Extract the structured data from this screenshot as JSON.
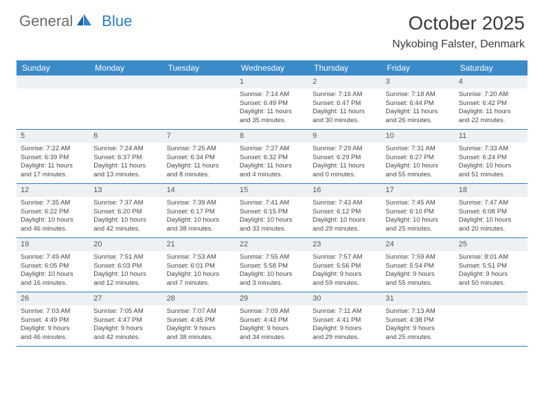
{
  "logo": {
    "text1": "General",
    "text2": "Blue"
  },
  "title": "October 2025",
  "location": "Nykobing Falster, Denmark",
  "colors": {
    "header_bg": "#3b8bc9",
    "accent": "#2b7bbf",
    "daynum_bg": "#eef1f3",
    "text": "#3a3a3a"
  },
  "day_names": [
    "Sunday",
    "Monday",
    "Tuesday",
    "Wednesday",
    "Thursday",
    "Friday",
    "Saturday"
  ],
  "weeks": [
    [
      {
        "n": "",
        "lines": [
          "",
          "",
          "",
          ""
        ]
      },
      {
        "n": "",
        "lines": [
          "",
          "",
          "",
          ""
        ]
      },
      {
        "n": "",
        "lines": [
          "",
          "",
          "",
          ""
        ]
      },
      {
        "n": "1",
        "lines": [
          "Sunrise: 7:14 AM",
          "Sunset: 6:49 PM",
          "Daylight: 11 hours",
          "and 35 minutes."
        ]
      },
      {
        "n": "2",
        "lines": [
          "Sunrise: 7:16 AM",
          "Sunset: 6:47 PM",
          "Daylight: 11 hours",
          "and 30 minutes."
        ]
      },
      {
        "n": "3",
        "lines": [
          "Sunrise: 7:18 AM",
          "Sunset: 6:44 PM",
          "Daylight: 11 hours",
          "and 26 minutes."
        ]
      },
      {
        "n": "4",
        "lines": [
          "Sunrise: 7:20 AM",
          "Sunset: 6:42 PM",
          "Daylight: 11 hours",
          "and 22 minutes."
        ]
      }
    ],
    [
      {
        "n": "5",
        "lines": [
          "Sunrise: 7:22 AM",
          "Sunset: 6:39 PM",
          "Daylight: 11 hours",
          "and 17 minutes."
        ]
      },
      {
        "n": "6",
        "lines": [
          "Sunrise: 7:24 AM",
          "Sunset: 6:37 PM",
          "Daylight: 11 hours",
          "and 13 minutes."
        ]
      },
      {
        "n": "7",
        "lines": [
          "Sunrise: 7:25 AM",
          "Sunset: 6:34 PM",
          "Daylight: 11 hours",
          "and 8 minutes."
        ]
      },
      {
        "n": "8",
        "lines": [
          "Sunrise: 7:27 AM",
          "Sunset: 6:32 PM",
          "Daylight: 11 hours",
          "and 4 minutes."
        ]
      },
      {
        "n": "9",
        "lines": [
          "Sunrise: 7:29 AM",
          "Sunset: 6:29 PM",
          "Daylight: 11 hours",
          "and 0 minutes."
        ]
      },
      {
        "n": "10",
        "lines": [
          "Sunrise: 7:31 AM",
          "Sunset: 6:27 PM",
          "Daylight: 10 hours",
          "and 55 minutes."
        ]
      },
      {
        "n": "11",
        "lines": [
          "Sunrise: 7:33 AM",
          "Sunset: 6:24 PM",
          "Daylight: 10 hours",
          "and 51 minutes."
        ]
      }
    ],
    [
      {
        "n": "12",
        "lines": [
          "Sunrise: 7:35 AM",
          "Sunset: 6:22 PM",
          "Daylight: 10 hours",
          "and 46 minutes."
        ]
      },
      {
        "n": "13",
        "lines": [
          "Sunrise: 7:37 AM",
          "Sunset: 6:20 PM",
          "Daylight: 10 hours",
          "and 42 minutes."
        ]
      },
      {
        "n": "14",
        "lines": [
          "Sunrise: 7:39 AM",
          "Sunset: 6:17 PM",
          "Daylight: 10 hours",
          "and 38 minutes."
        ]
      },
      {
        "n": "15",
        "lines": [
          "Sunrise: 7:41 AM",
          "Sunset: 6:15 PM",
          "Daylight: 10 hours",
          "and 33 minutes."
        ]
      },
      {
        "n": "16",
        "lines": [
          "Sunrise: 7:43 AM",
          "Sunset: 6:12 PM",
          "Daylight: 10 hours",
          "and 29 minutes."
        ]
      },
      {
        "n": "17",
        "lines": [
          "Sunrise: 7:45 AM",
          "Sunset: 6:10 PM",
          "Daylight: 10 hours",
          "and 25 minutes."
        ]
      },
      {
        "n": "18",
        "lines": [
          "Sunrise: 7:47 AM",
          "Sunset: 6:08 PM",
          "Daylight: 10 hours",
          "and 20 minutes."
        ]
      }
    ],
    [
      {
        "n": "19",
        "lines": [
          "Sunrise: 7:49 AM",
          "Sunset: 6:05 PM",
          "Daylight: 10 hours",
          "and 16 minutes."
        ]
      },
      {
        "n": "20",
        "lines": [
          "Sunrise: 7:51 AM",
          "Sunset: 6:03 PM",
          "Daylight: 10 hours",
          "and 12 minutes."
        ]
      },
      {
        "n": "21",
        "lines": [
          "Sunrise: 7:53 AM",
          "Sunset: 6:01 PM",
          "Daylight: 10 hours",
          "and 7 minutes."
        ]
      },
      {
        "n": "22",
        "lines": [
          "Sunrise: 7:55 AM",
          "Sunset: 5:58 PM",
          "Daylight: 10 hours",
          "and 3 minutes."
        ]
      },
      {
        "n": "23",
        "lines": [
          "Sunrise: 7:57 AM",
          "Sunset: 5:56 PM",
          "Daylight: 9 hours",
          "and 59 minutes."
        ]
      },
      {
        "n": "24",
        "lines": [
          "Sunrise: 7:59 AM",
          "Sunset: 5:54 PM",
          "Daylight: 9 hours",
          "and 55 minutes."
        ]
      },
      {
        "n": "25",
        "lines": [
          "Sunrise: 8:01 AM",
          "Sunset: 5:51 PM",
          "Daylight: 9 hours",
          "and 50 minutes."
        ]
      }
    ],
    [
      {
        "n": "26",
        "lines": [
          "Sunrise: 7:03 AM",
          "Sunset: 4:49 PM",
          "Daylight: 9 hours",
          "and 46 minutes."
        ]
      },
      {
        "n": "27",
        "lines": [
          "Sunrise: 7:05 AM",
          "Sunset: 4:47 PM",
          "Daylight: 9 hours",
          "and 42 minutes."
        ]
      },
      {
        "n": "28",
        "lines": [
          "Sunrise: 7:07 AM",
          "Sunset: 4:45 PM",
          "Daylight: 9 hours",
          "and 38 minutes."
        ]
      },
      {
        "n": "29",
        "lines": [
          "Sunrise: 7:09 AM",
          "Sunset: 4:43 PM",
          "Daylight: 9 hours",
          "and 34 minutes."
        ]
      },
      {
        "n": "30",
        "lines": [
          "Sunrise: 7:11 AM",
          "Sunset: 4:41 PM",
          "Daylight: 9 hours",
          "and 29 minutes."
        ]
      },
      {
        "n": "31",
        "lines": [
          "Sunrise: 7:13 AM",
          "Sunset: 4:38 PM",
          "Daylight: 9 hours",
          "and 25 minutes."
        ]
      },
      {
        "n": "",
        "lines": [
          "",
          "",
          "",
          ""
        ]
      }
    ]
  ]
}
